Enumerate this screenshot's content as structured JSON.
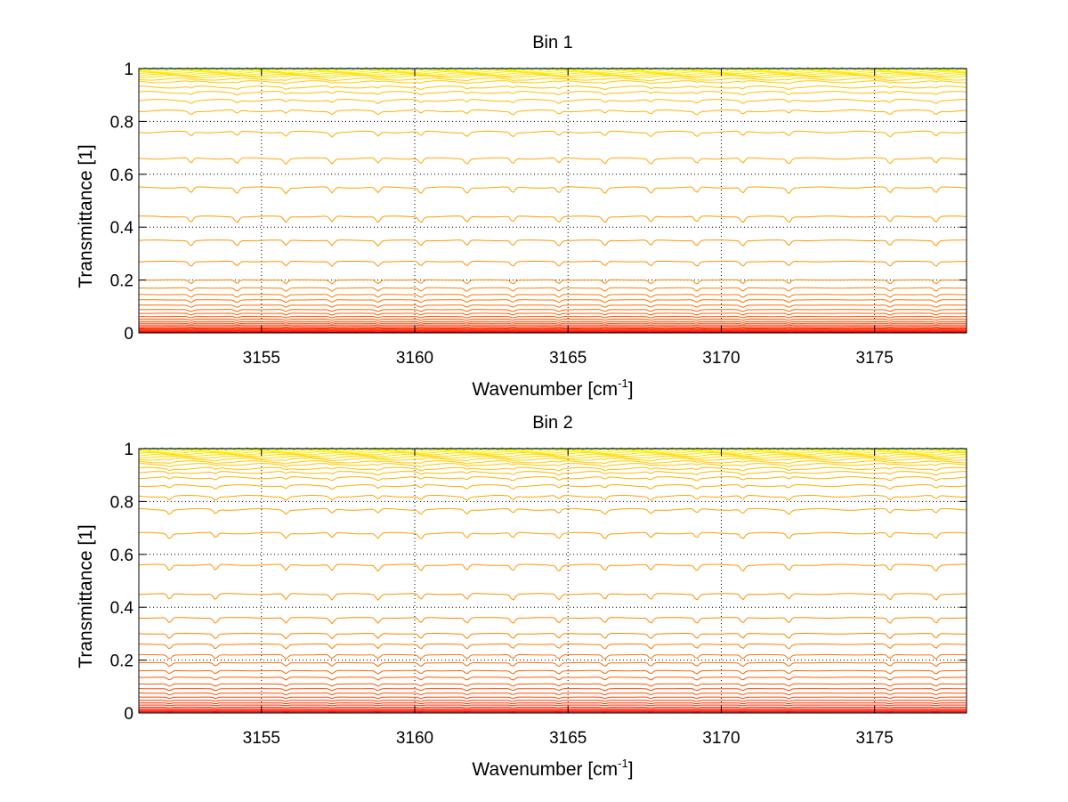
{
  "chart_data": [
    {
      "type": "line",
      "title": "Bin 1",
      "xlabel": "Wavenumber [cm",
      "xlabel_superscript": "-1",
      "xlabel_suffix": "]",
      "ylabel": "Transmittance [1]",
      "xlim": [
        3151,
        3178
      ],
      "ylim": [
        0,
        1
      ],
      "xticks": [
        3155,
        3160,
        3165,
        3170,
        3175
      ],
      "xtick_labels": [
        "3155",
        "3160",
        "3165",
        "3170",
        "3175"
      ],
      "yticks": [
        0,
        0.2,
        0.4,
        0.6,
        0.8,
        1
      ],
      "ytick_labels": [
        "0",
        "0.2",
        "0.4",
        "0.6",
        "0.8",
        "1"
      ],
      "grid": "dotted",
      "series_count": 40,
      "series_baselines": [
        1.0,
        0.997,
        0.993,
        0.989,
        0.985,
        0.98,
        0.975,
        0.97,
        0.96,
        0.95,
        0.93,
        0.91,
        0.88,
        0.84,
        0.76,
        0.66,
        0.55,
        0.44,
        0.35,
        0.27,
        0.2,
        0.17,
        0.145,
        0.125,
        0.105,
        0.088,
        0.074,
        0.062,
        0.052,
        0.043,
        0.036,
        0.03,
        0.024,
        0.019,
        0.015,
        0.011,
        0.008,
        0.005,
        0.003,
        0.001
      ],
      "absorption_lines": [
        3152.7,
        3154.2,
        3155.8,
        3157.3,
        3158.8,
        3160.2,
        3161.7,
        3163.2,
        3164.7,
        3166.2,
        3167.7,
        3169.2,
        3170.7,
        3172.2,
        3175.5,
        3177.0
      ],
      "colormap_from": "#ff0000",
      "colormap_mid": "#ff8c00",
      "colormap_to": "#ffff00",
      "top_series_color": "#1f9fdf"
    },
    {
      "type": "line",
      "title": "Bin 2",
      "xlabel": "Wavenumber [cm",
      "xlabel_superscript": "-1",
      "xlabel_suffix": "]",
      "ylabel": "Transmittance [1]",
      "xlim": [
        3151,
        3178
      ],
      "ylim": [
        0,
        1
      ],
      "xticks": [
        3155,
        3160,
        3165,
        3170,
        3175
      ],
      "xtick_labels": [
        "3155",
        "3160",
        "3165",
        "3170",
        "3175"
      ],
      "yticks": [
        0,
        0.2,
        0.4,
        0.6,
        0.8,
        1
      ],
      "ytick_labels": [
        "0",
        "0.2",
        "0.4",
        "0.6",
        "0.8",
        "1"
      ],
      "grid": "dotted",
      "series_count": 40,
      "series_baselines": [
        1.0,
        0.997,
        0.994,
        0.99,
        0.986,
        0.981,
        0.975,
        0.968,
        0.96,
        0.95,
        0.94,
        0.925,
        0.91,
        0.89,
        0.86,
        0.82,
        0.77,
        0.68,
        0.56,
        0.45,
        0.36,
        0.3,
        0.26,
        0.22,
        0.19,
        0.16,
        0.135,
        0.11,
        0.092,
        0.075,
        0.06,
        0.048,
        0.038,
        0.03,
        0.022,
        0.016,
        0.011,
        0.007,
        0.004,
        0.001
      ],
      "absorption_lines": [
        3152.0,
        3153.5,
        3155.8,
        3157.3,
        3158.8,
        3160.2,
        3161.7,
        3163.2,
        3164.7,
        3166.2,
        3167.7,
        3169.2,
        3170.7,
        3172.2,
        3175.5,
        3177.0
      ],
      "colormap_from": "#ff0000",
      "colormap_mid": "#ff8c00",
      "colormap_to": "#ffff00",
      "top_series_color": "#1f9fdf"
    }
  ]
}
